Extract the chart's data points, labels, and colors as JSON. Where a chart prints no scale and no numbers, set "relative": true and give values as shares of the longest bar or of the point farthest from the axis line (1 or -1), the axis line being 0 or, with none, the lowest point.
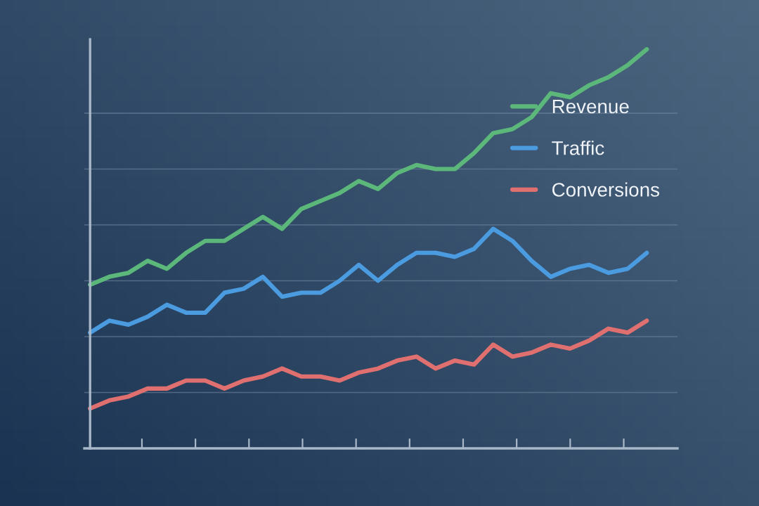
{
  "chart_data": {
    "type": "line",
    "relative": true,
    "categories": [
      null,
      null,
      null,
      null,
      null,
      null,
      null,
      null,
      null,
      null,
      null,
      null,
      null,
      null,
      null,
      null,
      null,
      null,
      null,
      null,
      null,
      null,
      null,
      null,
      null,
      null,
      null,
      null,
      null,
      null
    ],
    "series": [
      {
        "name": "Revenue",
        "color": "#5cb87a",
        "values": [
          0.41,
          0.43,
          0.44,
          0.47,
          0.45,
          0.49,
          0.52,
          0.52,
          0.55,
          0.58,
          0.55,
          0.6,
          0.62,
          0.64,
          0.67,
          0.65,
          0.69,
          0.71,
          0.7,
          0.7,
          0.74,
          0.79,
          0.8,
          0.83,
          0.89,
          0.88,
          0.91,
          0.93,
          0.96,
          1
        ]
      },
      {
        "name": "Traffic",
        "color": "#4a9be0",
        "values": [
          0.29,
          0.32,
          0.31,
          0.33,
          0.36,
          0.34,
          0.34,
          0.39,
          0.4,
          0.43,
          0.38,
          0.39,
          0.39,
          0.42,
          0.46,
          0.42,
          0.46,
          0.49,
          0.49,
          0.48,
          0.5,
          0.55,
          0.52,
          0.47,
          0.43,
          0.45,
          0.46,
          0.44,
          0.45,
          0.49
        ]
      },
      {
        "name": "Conversions",
        "color": "#e07070",
        "values": [
          0.1,
          0.12,
          0.13,
          0.15,
          0.15,
          0.17,
          0.17,
          0.15,
          0.17,
          0.18,
          0.2,
          0.18,
          0.18,
          0.17,
          0.19,
          0.2,
          0.22,
          0.23,
          0.2,
          0.22,
          0.21,
          0.26,
          0.23,
          0.24,
          0.26,
          0.25,
          0.27,
          0.3,
          0.29,
          0.32
        ]
      }
    ],
    "ref_lines": [
      {
        "axis": "y",
        "value": 0.14,
        "color": "#6f86a0"
      },
      {
        "axis": "y",
        "value": 0.28,
        "color": "#6f86a0"
      },
      {
        "axis": "y",
        "value": 0.42,
        "color": "#6f86a0"
      },
      {
        "axis": "y",
        "value": 0.56,
        "color": "#6f86a0"
      },
      {
        "axis": "y",
        "value": 0.7,
        "color": "#6f86a0"
      },
      {
        "axis": "y",
        "value": 0.84,
        "color": "#6f86a0"
      }
    ],
    "legend": "right",
    "line_style": "solid",
    "marker": "none"
  }
}
